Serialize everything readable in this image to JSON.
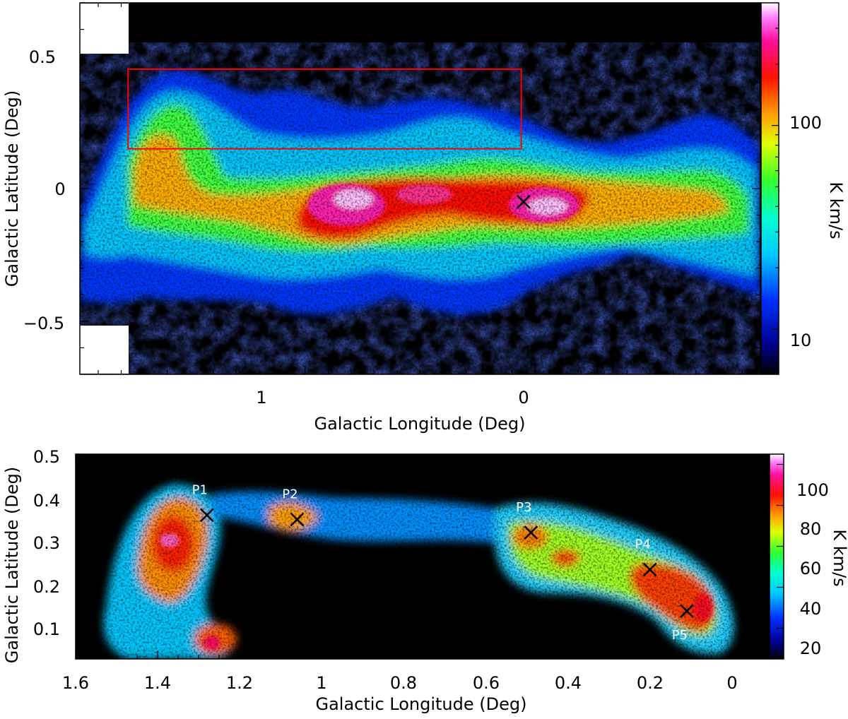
{
  "chart_data": [
    {
      "type": "heatmap",
      "xlabel": "Galactic Longitude (Deg)",
      "ylabel": "Galactic Latitude (Deg)",
      "colorbar_label": "K km/s",
      "colorbar_scale": "log",
      "colorbar_range": [
        6,
        400
      ],
      "colorbar_ticks": [
        "10",
        "100"
      ],
      "xlim": [
        1.98,
        -0.98
      ],
      "ylim": [
        -0.7,
        0.7
      ],
      "x_ticks": [
        "1",
        "0"
      ],
      "y_ticks": [
        "0.5",
        "0",
        "−0.5"
      ],
      "highlight_box": {
        "x_range": [
          1.77,
          0.06
        ],
        "y_range": [
          0.15,
          0.45
        ],
        "color": "#ff0000"
      },
      "markers": [
        {
          "label": "",
          "x": 0.05,
          "y": -0.05,
          "symbol": "x"
        }
      ]
    },
    {
      "type": "heatmap",
      "xlabel": "Galactic Longitude (Deg)",
      "ylabel": "Galactic Latitude (Deg)",
      "colorbar_label": "K km/s",
      "colorbar_scale": "linear",
      "colorbar_range": [
        5,
        105
      ],
      "colorbar_ticks": [
        "20",
        "40",
        "60",
        "80",
        "100"
      ],
      "xlim": [
        1.6,
        -0.09
      ],
      "ylim": [
        0.03,
        0.5
      ],
      "x_ticks": [
        "1.6",
        "1.4",
        "1.2",
        "1",
        "0.8",
        "0.6",
        "0.4",
        "0.2",
        "0"
      ],
      "y_ticks": [
        "0.1",
        "0.2",
        "0.3",
        "0.4",
        "0.5"
      ],
      "markers": [
        {
          "label": "P1",
          "x": 1.28,
          "y": 0.36,
          "label_pos": "above"
        },
        {
          "label": "P2",
          "x": 1.06,
          "y": 0.35,
          "label_pos": "above"
        },
        {
          "label": "P3",
          "x": 0.49,
          "y": 0.32,
          "label_pos": "above"
        },
        {
          "label": "P4",
          "x": 0.2,
          "y": 0.235,
          "label_pos": "above"
        },
        {
          "label": "P5",
          "x": 0.11,
          "y": 0.14,
          "label_pos": "below"
        }
      ]
    }
  ]
}
